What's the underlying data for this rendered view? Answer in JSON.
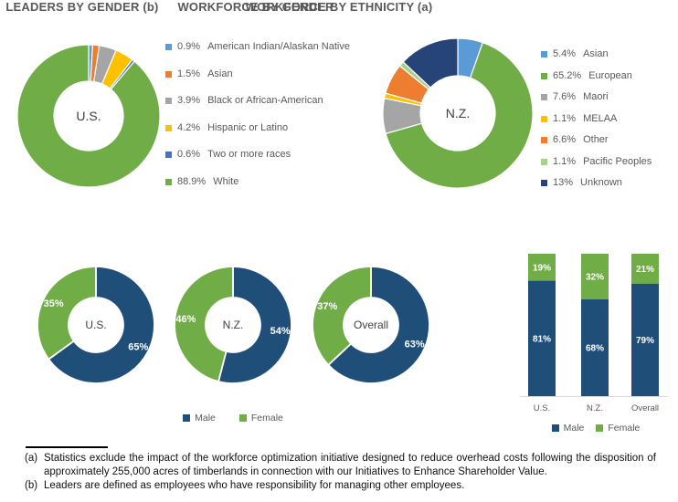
{
  "footnotes": [
    {
      "marker": "(a)",
      "text": "Statistics exclude the impact of the workforce optimization initiative designed to reduce overhead costs following the disposition of approximately 255,000 acres of timberlands in connection with our Initiatives to Enhance Shareholder Value."
    },
    {
      "marker": "(b)",
      "text": "Leaders are defined as employees who have responsibility for managing other employees."
    }
  ],
  "palette": {
    "blue": "#4472C4",
    "light_blue": "#5B9BD5",
    "orange": "#ED7D31",
    "gray": "#A5A5A5",
    "yellow": "#FFC000",
    "green": "#70AD47",
    "light_green": "#A9D18E",
    "navy": "#264478",
    "male_navy": "#1F4E79",
    "title_gray": "#595959",
    "axis_line": "#D9D9D9",
    "center_label": "#404040"
  },
  "chart_data": [
    {
      "type": "pie",
      "subtype": "donut",
      "title": "WORKFORCE BY ETHNICITY (a)",
      "legend_position": "right",
      "donuts": [
        {
          "center_label": "U.S.",
          "slices": [
            {
              "pct": "0.9%",
              "value": 0.9,
              "name": "American Indian/Alaskan Native",
              "color": "#5B9BD5"
            },
            {
              "pct": "1.5%",
              "value": 1.5,
              "name": "Asian",
              "color": "#ED7D31"
            },
            {
              "pct": "3.9%",
              "value": 3.9,
              "name": "Black or African-American",
              "color": "#A5A5A5"
            },
            {
              "pct": "4.2%",
              "value": 4.2,
              "name": "Hispanic or Latino",
              "color": "#FFC000"
            },
            {
              "pct": "0.6%",
              "value": 0.6,
              "name": "Two or more races",
              "color": "#4472C4"
            },
            {
              "pct": "88.9%",
              "value": 88.9,
              "name": "White",
              "color": "#70AD47"
            }
          ]
        },
        {
          "center_label": "N.Z.",
          "slices": [
            {
              "pct": "5.4%",
              "value": 5.4,
              "name": "Asian",
              "color": "#5B9BD5"
            },
            {
              "pct": "65.2%",
              "value": 65.2,
              "name": "European",
              "color": "#70AD47"
            },
            {
              "pct": "7.6%",
              "value": 7.6,
              "name": "Maori",
              "color": "#A5A5A5"
            },
            {
              "pct": "1.1%",
              "value": 1.1,
              "name": "MELAA",
              "color": "#FFC000"
            },
            {
              "pct": "6.6%",
              "value": 6.6,
              "name": "Other",
              "color": "#ED7D31"
            },
            {
              "pct": "1.1%",
              "value": 1.1,
              "name": "Pacific Peoples",
              "color": "#A9D18E"
            },
            {
              "pct": "13%",
              "value": 13,
              "name": "Unknown",
              "color": "#264478"
            }
          ]
        }
      ]
    },
    {
      "type": "pie",
      "subtype": "donut",
      "title": "WORKFORCE BY GENDER",
      "legend_position": "bottom",
      "legend": [
        {
          "name": "Male",
          "color": "#1F4E79"
        },
        {
          "name": "Female",
          "color": "#70AD47"
        }
      ],
      "donuts": [
        {
          "center_label": "U.S.",
          "slices": [
            {
              "name": "Male",
              "value": 65,
              "label": "65%",
              "color": "#1F4E79"
            },
            {
              "name": "Female",
              "value": 35,
              "label": "35%",
              "color": "#70AD47"
            }
          ]
        },
        {
          "center_label": "N.Z.",
          "slices": [
            {
              "name": "Male",
              "value": 54,
              "label": "54%",
              "color": "#1F4E79"
            },
            {
              "name": "Female",
              "value": 46,
              "label": "46%",
              "color": "#70AD47"
            }
          ]
        },
        {
          "center_label": "Overall",
          "slices": [
            {
              "name": "Male",
              "value": 63,
              "label": "63%",
              "color": "#1F4E79"
            },
            {
              "name": "Female",
              "value": 37,
              "label": "37%",
              "color": "#70AD47"
            }
          ]
        }
      ]
    },
    {
      "type": "bar",
      "subtype": "stacked-100",
      "title": "LEADERS BY GENDER (b)",
      "categories": [
        "U.S.",
        "N.Z.",
        "Overall"
      ],
      "series": [
        {
          "name": "Male",
          "color": "#1F4E79",
          "values": [
            81,
            68,
            79
          ]
        },
        {
          "name": "Female",
          "color": "#70AD47",
          "values": [
            19,
            32,
            21
          ]
        }
      ],
      "value_labels": [
        "81%",
        "68%",
        "79%",
        "19%",
        "32%",
        "21%"
      ],
      "ylim": [
        0,
        100
      ],
      "grid": false,
      "legend_position": "bottom",
      "legend": [
        {
          "name": "Male",
          "color": "#1F4E79"
        },
        {
          "name": "Female",
          "color": "#70AD47"
        }
      ]
    }
  ]
}
